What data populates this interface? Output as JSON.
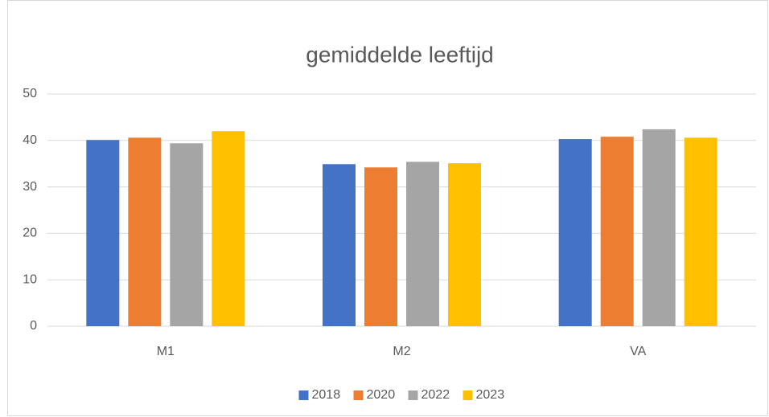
{
  "chart_data": {
    "type": "bar",
    "title": "gemiddelde leeftijd",
    "categories": [
      "M1",
      "M2",
      "VA"
    ],
    "series": [
      {
        "name": "2018",
        "color": "#4472c4",
        "values": [
          40.1,
          34.9,
          40.3
        ]
      },
      {
        "name": "2020",
        "color": "#ed7d31",
        "values": [
          40.6,
          34.2,
          40.8
        ]
      },
      {
        "name": "2022",
        "color": "#a5a5a5",
        "values": [
          39.4,
          35.4,
          42.4
        ]
      },
      {
        "name": "2023",
        "color": "#ffc000",
        "values": [
          42.0,
          35.1,
          40.6
        ]
      }
    ],
    "ylim": [
      0,
      50
    ],
    "yticks": [
      0,
      10,
      20,
      30,
      40,
      50
    ],
    "grid": true,
    "legend": "bottom"
  }
}
